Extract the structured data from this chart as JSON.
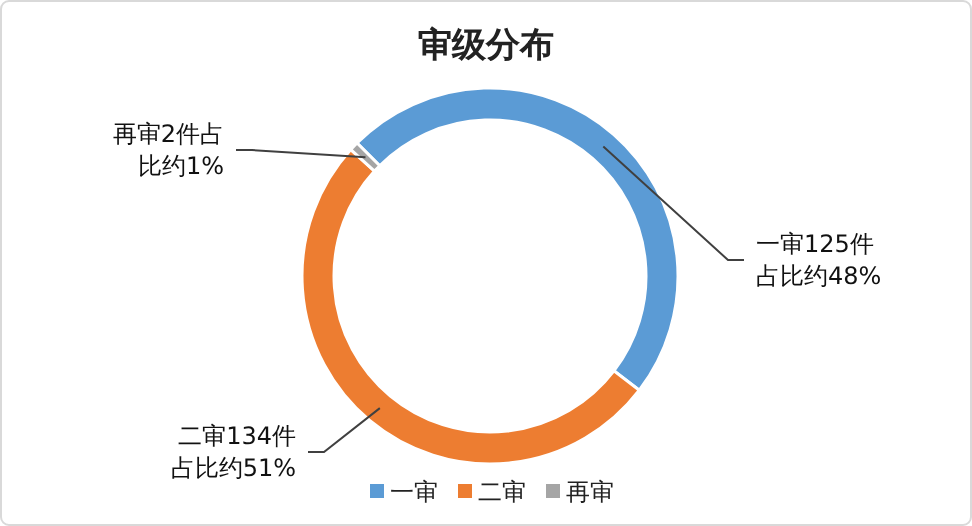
{
  "chart_data": {
    "type": "donut",
    "title": "审级分布",
    "categories": [
      "一审",
      "二审",
      "再审"
    ],
    "values": [
      125,
      134,
      2
    ],
    "colors": [
      "#5b9bd5",
      "#ed7d31",
      "#a5a5a5"
    ],
    "value_labels": [
      "一审125件占比约48%",
      "二审134件占比约51%",
      "再审2件占比约1%"
    ],
    "legend": "bottom"
  }
}
